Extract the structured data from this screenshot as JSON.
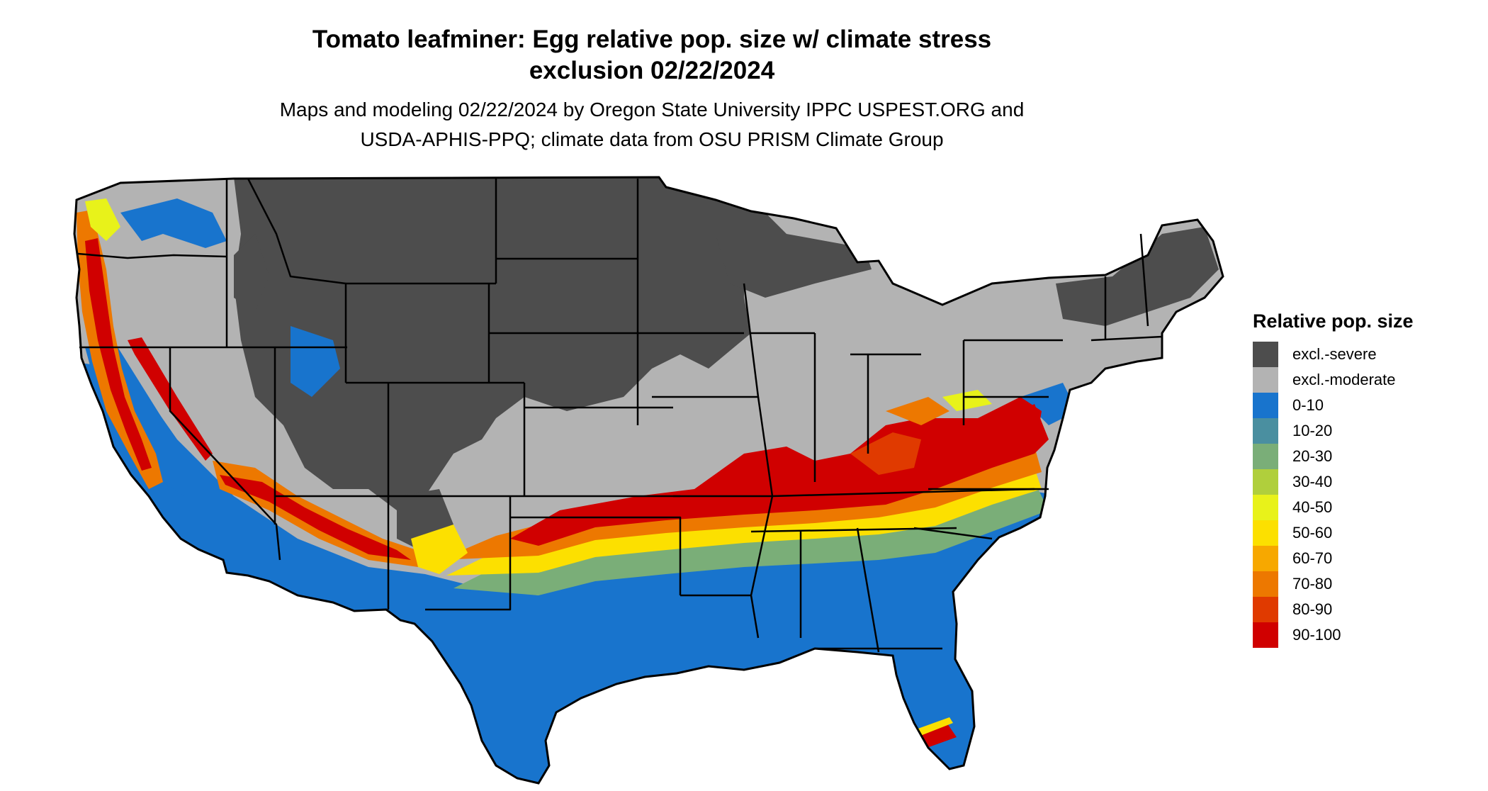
{
  "title": {
    "line1": "Tomato leafminer: Egg relative pop. size w/ climate stress",
    "line2": "exclusion 02/22/2024"
  },
  "subtitle": {
    "line1": "Maps and modeling 02/22/2024 by Oregon State University IPPC USPEST.ORG and",
    "line2": "USDA-APHIS-PPQ; climate data from OSU PRISM Climate Group"
  },
  "legend": {
    "title": "Relative pop. size",
    "items": [
      {
        "label": "excl.-severe",
        "color": "#4d4d4d"
      },
      {
        "label": "excl.-moderate",
        "color": "#b3b3b3"
      },
      {
        "label": "0-10",
        "color": "#1874cd"
      },
      {
        "label": "10-20",
        "color": "#4a8fa0"
      },
      {
        "label": "20-30",
        "color": "#7aae78"
      },
      {
        "label": "30-40",
        "color": "#b0cf3c"
      },
      {
        "label": "40-50",
        "color": "#e8f21a"
      },
      {
        "label": "50-60",
        "color": "#fce000"
      },
      {
        "label": "60-70",
        "color": "#f7a800"
      },
      {
        "label": "70-80",
        "color": "#ed7800"
      },
      {
        "label": "80-90",
        "color": "#e03a00"
      },
      {
        "label": "90-100",
        "color": "#d00000"
      }
    ]
  }
}
